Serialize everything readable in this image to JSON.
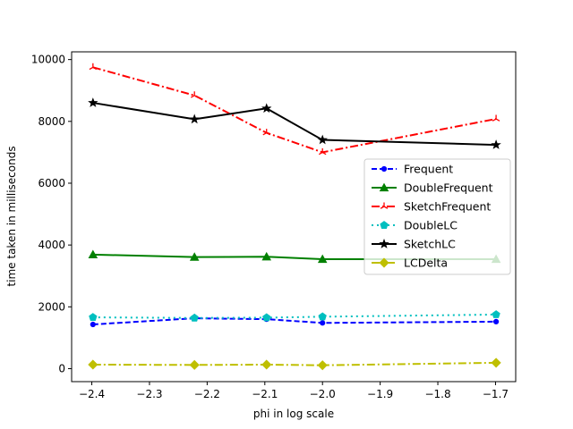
{
  "chart_data": {
    "type": "line",
    "title": "",
    "xlabel": "phi in log scale",
    "ylabel": "time taken in milliseconds",
    "xlim": [
      -2.435,
      -1.665
    ],
    "ylim": [
      -420,
      10250
    ],
    "xticks": [
      -2.4,
      -2.3,
      -2.2,
      -2.1,
      -2.0,
      -1.9,
      -1.8,
      -1.7
    ],
    "xtick_labels": [
      "−2.4",
      "−2.3",
      "−2.2",
      "−2.1",
      "−2.0",
      "−1.9",
      "−1.8",
      "−1.7"
    ],
    "yticks": [
      0,
      2000,
      4000,
      6000,
      8000,
      10000
    ],
    "ytick_labels": [
      "0",
      "2000",
      "4000",
      "6000",
      "8000",
      "10000"
    ],
    "grid": false,
    "legend_position": "center-right",
    "x": [
      -2.398,
      -2.222,
      -2.097,
      -2.0,
      -1.699
    ],
    "series": [
      {
        "name": "Frequent",
        "values": [
          1430,
          1630,
          1600,
          1480,
          1520
        ],
        "color": "#0000ff",
        "dash": "6,3",
        "marker": "point"
      },
      {
        "name": "DoubleFrequent",
        "values": [
          3690,
          3610,
          3620,
          3540,
          3540
        ],
        "color": "#008000",
        "dash": "",
        "marker": "triangle"
      },
      {
        "name": "SketchFrequent",
        "values": [
          9750,
          8840,
          7630,
          7000,
          8080
        ],
        "color": "#ff0000",
        "dash": "9,3,2,3",
        "marker": "tri_up"
      },
      {
        "name": "DoubleLC",
        "values": [
          1660,
          1640,
          1650,
          1680,
          1750
        ],
        "color": "#00bfbf",
        "dash": "2,4",
        "marker": "pentagon"
      },
      {
        "name": "SketchLC",
        "values": [
          8600,
          8070,
          8420,
          7400,
          7240
        ],
        "color": "#000000",
        "dash": "",
        "marker": "star"
      },
      {
        "name": "LCDelta",
        "values": [
          130,
          120,
          130,
          110,
          190
        ],
        "color": "#bfbf00",
        "dash": "9,3,2,3",
        "marker": "diamond"
      }
    ]
  }
}
